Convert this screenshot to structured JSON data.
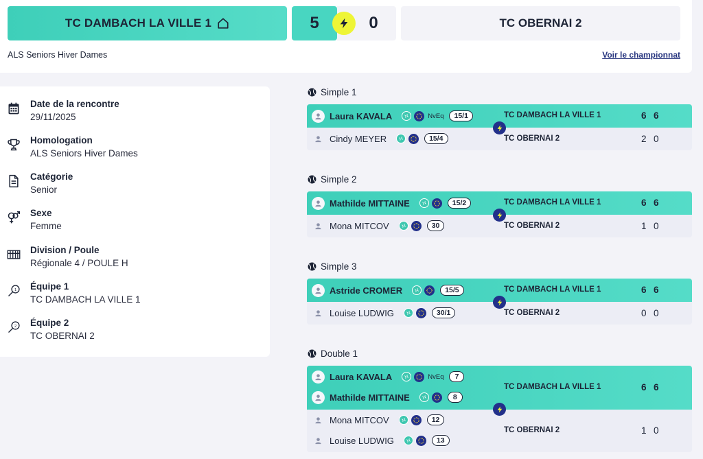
{
  "header": {
    "home_team": "TC DAMBACH LA VILLE 1",
    "home_score": "5",
    "away_score": "0",
    "away_team": "TC OBERNAI 2",
    "competition": "ALS Seniors Hiver Dames",
    "link": "Voir le championnat"
  },
  "info": [
    {
      "icon": "calendar-icon",
      "label": "Date de la rencontre",
      "value": "29/11/2025"
    },
    {
      "icon": "trophy-icon",
      "label": "Homologation",
      "value": "ALS Seniors Hiver Dames"
    },
    {
      "icon": "document-icon",
      "label": "Catégorie",
      "value": "Senior"
    },
    {
      "icon": "gender-icon",
      "label": "Sexe",
      "value": "Femme"
    },
    {
      "icon": "grid-icon",
      "label": "Division / Poule",
      "value": "Régionale 4 / POULE H"
    },
    {
      "icon": "racket-1-icon",
      "label": "Équipe 1",
      "value": "TC DAMBACH LA VILLE 1"
    },
    {
      "icon": "racket-2-icon",
      "label": "Équipe 2",
      "value": "TC OBERNAI 2"
    }
  ],
  "matches": [
    {
      "title": "Simple 1",
      "win": {
        "players": [
          {
            "name": "Laura KAVALA",
            "nveq": "NvEq",
            "rank": "15/1"
          }
        ],
        "team": "TC DAMBACH LA VILLE 1",
        "sets": [
          "6",
          "6"
        ]
      },
      "lose": {
        "players": [
          {
            "name": "Cindy MEYER",
            "rank": "15/4"
          }
        ],
        "team": "TC OBERNAI 2",
        "sets": [
          "2",
          "0"
        ]
      }
    },
    {
      "title": "Simple 2",
      "win": {
        "players": [
          {
            "name": "Mathilde MITTAINE",
            "rank": "15/2"
          }
        ],
        "team": "TC DAMBACH LA VILLE 1",
        "sets": [
          "6",
          "6"
        ]
      },
      "lose": {
        "players": [
          {
            "name": "Mona MITCOV",
            "rank": "30"
          }
        ],
        "team": "TC OBERNAI 2",
        "sets": [
          "1",
          "0"
        ]
      }
    },
    {
      "title": "Simple 3",
      "win": {
        "players": [
          {
            "name": "Astride CROMER",
            "rank": "15/5"
          }
        ],
        "team": "TC DAMBACH LA VILLE 1",
        "sets": [
          "6",
          "6"
        ]
      },
      "lose": {
        "players": [
          {
            "name": "Louise LUDWIG",
            "rank": "30/1"
          }
        ],
        "team": "TC OBERNAI 2",
        "sets": [
          "0",
          "0"
        ]
      }
    },
    {
      "title": "Double 1",
      "win": {
        "players": [
          {
            "name": "Laura KAVALA",
            "nveq": "NvEq",
            "rank": "7"
          },
          {
            "name": "Mathilde MITTAINE",
            "rank": "8"
          }
        ],
        "team": "TC DAMBACH LA VILLE 1",
        "sets": [
          "6",
          "6"
        ]
      },
      "lose": {
        "players": [
          {
            "name": "Mona MITCOV",
            "rank": "12"
          },
          {
            "name": "Louise LUDWIG",
            "rank": "13"
          }
        ],
        "team": "TC OBERNAI 2",
        "sets": [
          "1",
          "0"
        ]
      }
    }
  ]
}
